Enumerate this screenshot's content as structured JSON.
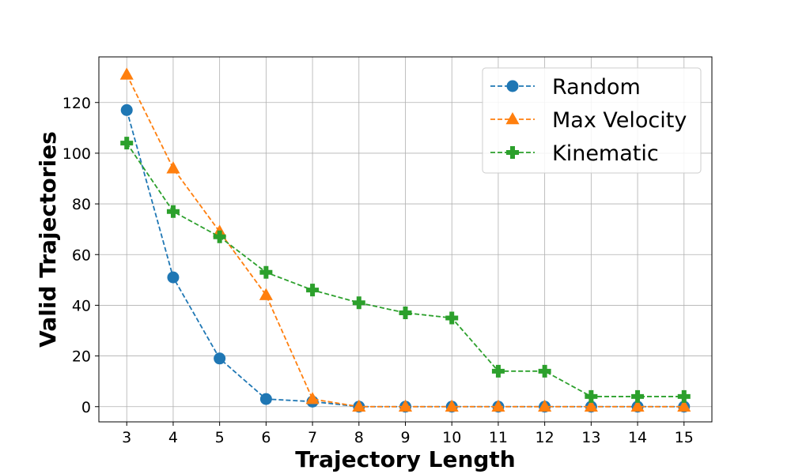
{
  "chart_data": {
    "type": "line",
    "title": "",
    "xlabel": "Trajectory Length",
    "ylabel": "Valid Trajectories",
    "x": [
      3,
      4,
      5,
      6,
      7,
      8,
      9,
      10,
      11,
      12,
      13,
      14,
      15
    ],
    "xlim": [
      2.4,
      15.6
    ],
    "ylim": [
      -6,
      138
    ],
    "yticks": [
      0,
      20,
      40,
      60,
      80,
      100,
      120
    ],
    "grid": true,
    "legend_position": "top-right",
    "series": [
      {
        "name": "Random",
        "color": "#1f77b4",
        "marker": "circle",
        "linestyle": "dashed",
        "values": [
          117,
          51,
          19,
          3,
          2,
          0,
          0,
          0,
          0,
          0,
          0,
          0,
          0
        ]
      },
      {
        "name": "Max Velocity",
        "color": "#ff7f0e",
        "marker": "triangle",
        "linestyle": "dashed",
        "values": [
          131,
          94,
          69,
          44,
          3,
          0,
          0,
          0,
          0,
          0,
          0,
          0,
          0
        ]
      },
      {
        "name": "Kinematic",
        "color": "#2ca02c",
        "marker": "plus",
        "linestyle": "dashed",
        "values": [
          104,
          77,
          67,
          53,
          46,
          41,
          37,
          35,
          14,
          14,
          4,
          4,
          4
        ]
      }
    ]
  }
}
